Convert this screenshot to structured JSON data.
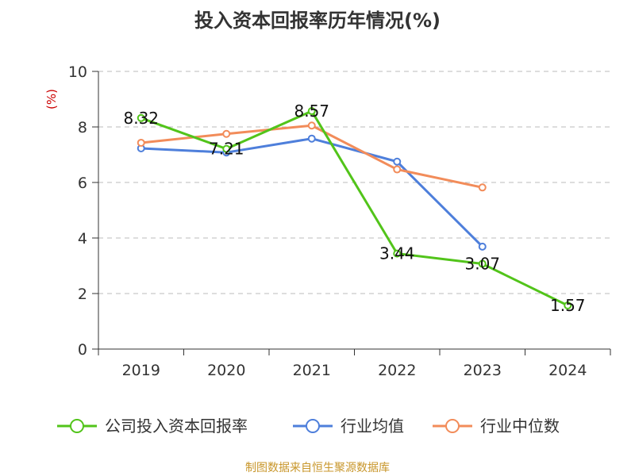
{
  "chart_data": {
    "type": "line",
    "title": "投入资本回报率历年情况(%)",
    "ylabel": "(%)",
    "xlabel": "",
    "ylim": [
      0,
      10
    ],
    "yticks": [
      0,
      2,
      4,
      6,
      8,
      10
    ],
    "grid": true,
    "legend_position": "bottom",
    "categories": [
      "2019",
      "2020",
      "2021",
      "2022",
      "2023",
      "2024"
    ],
    "series": [
      {
        "name": "公司投入资本回报率",
        "color": "#52c41a",
        "values": [
          8.32,
          7.21,
          8.57,
          3.44,
          3.07,
          1.57
        ],
        "labels": [
          "8.32",
          "7.21",
          "8.57",
          "3.44",
          "3.07",
          "1.57"
        ]
      },
      {
        "name": "行业均值",
        "color": "#4e7fdb",
        "values": [
          7.23,
          7.08,
          7.58,
          6.75,
          3.69,
          null
        ]
      },
      {
        "name": "行业中位数",
        "color": "#f28c5a",
        "values": [
          7.43,
          7.75,
          8.05,
          6.47,
          5.82,
          null
        ]
      }
    ]
  },
  "source": "制图数据来自恒生聚源数据库"
}
